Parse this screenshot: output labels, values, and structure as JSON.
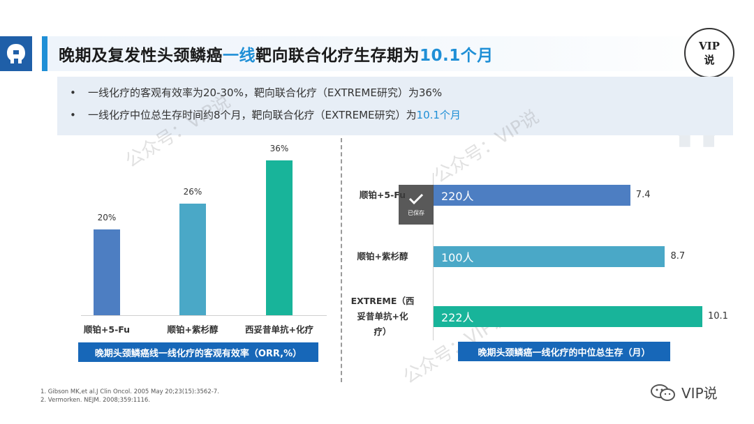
{
  "header": {
    "title_prefix": "晚期及复发性头颈鳞癌",
    "title_highlight1": "一线",
    "title_mid": "靶向联合化疗生存期为",
    "title_highlight2": "10.1个月",
    "badge_line1": "VIP",
    "badge_line2": "说"
  },
  "bullets": {
    "dot": "•",
    "item1": "一线化疗的客观有效率为20-30%，靶向联合化疗（EXTREME研究）为36%",
    "item2_prefix": "一线化疗中位总生存时间约8个月，靶向联合化疗（EXTREME研究）为",
    "item2_highlight": "10.1个月"
  },
  "colors": {
    "accent": "#1f8fd6",
    "brand": "#1767b8",
    "bar1": "#4d7ec2",
    "bar2": "#4aa8c7",
    "bar3": "#18b49a"
  },
  "chart_data": [
    {
      "type": "bar",
      "title": "晚期头颈鳞癌线一线化疗的客观有效率（ORR,%）",
      "categories": [
        "顺铂+5-Fu",
        "顺铂+紫杉醇",
        "西妥昔单抗+化疗"
      ],
      "values": [
        20,
        26,
        36
      ],
      "value_labels": [
        "20%",
        "26%",
        "36%"
      ],
      "ylim": [
        0,
        40
      ]
    },
    {
      "type": "bar",
      "orientation": "horizontal",
      "title": "晚期头颈鳞癌一线化疗的中位总生存（月）",
      "categories": [
        "顺铂+5-Fu",
        "顺铂+紫杉醇",
        "EXTREME（西妥昔单抗+化疗）"
      ],
      "category_lines": [
        [
          "顺铂+5-Fu"
        ],
        [
          "顺铂+紫杉醇"
        ],
        [
          "EXTREME（西",
          "妥昔单抗+化",
          "疗）"
        ]
      ],
      "values": [
        7.4,
        8.7,
        10.1
      ],
      "value_labels": [
        "7.4",
        "8.7",
        "10.1"
      ],
      "bar_text": [
        "220人",
        "100人",
        "222人"
      ],
      "xlim": [
        0,
        10.5
      ]
    }
  ],
  "saved_badge": {
    "label": "已保存"
  },
  "references": [
    "1. Gibson MK,et al.J Clin Oncol. 2005 May 20;23(15):3562-7.",
    "2. Vermorken. NEJM. 2008;359:1116."
  ],
  "footer": {
    "account": "VIP说"
  },
  "watermarks": [
    "公众号：VIP说",
    "公众号：VIP说",
    "公众号：VIP说"
  ],
  "icons": [
    "logo-icon",
    "checkmark-icon",
    "wechat-icon"
  ]
}
